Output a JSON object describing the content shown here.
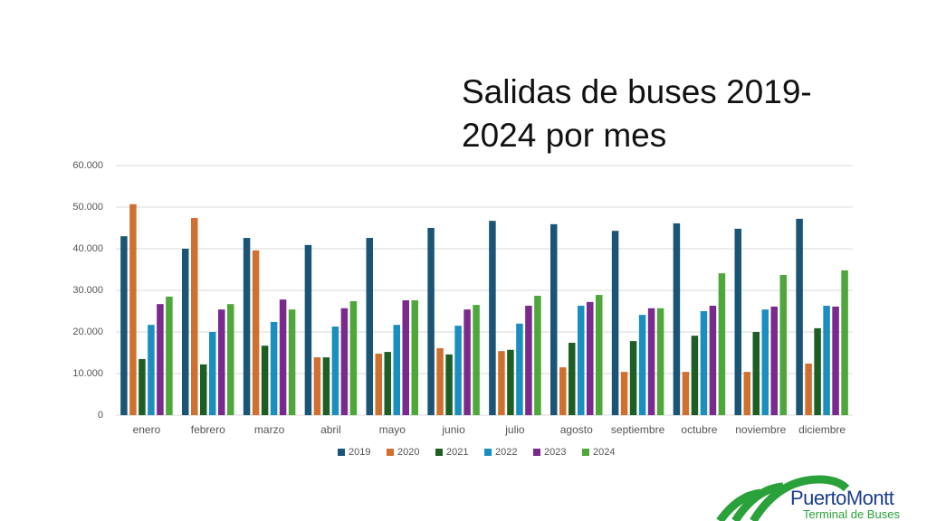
{
  "chart_data": {
    "type": "bar",
    "title": "Salidas de buses 2019-2024 por mes",
    "categories": [
      "enero",
      "febrero",
      "marzo",
      "abril",
      "mayo",
      "junio",
      "julio",
      "agosto",
      "septiembre",
      "octubre",
      "noviembre",
      "diciembre"
    ],
    "series": [
      {
        "name": "2019",
        "color": "#1a5576",
        "values": [
          43000,
          40000,
          42600,
          40900,
          42600,
          45000,
          46700,
          45900,
          44300,
          46100,
          44800,
          47200
        ]
      },
      {
        "name": "2020",
        "color": "#d0702f",
        "values": [
          50700,
          47400,
          39600,
          13900,
          14800,
          16100,
          15400,
          11500,
          10400,
          10400,
          10400,
          12400
        ]
      },
      {
        "name": "2021",
        "color": "#1e5e25",
        "values": [
          13500,
          12200,
          16700,
          13900,
          15200,
          14600,
          15700,
          17400,
          17800,
          19100,
          20000,
          20900
        ]
      },
      {
        "name": "2022",
        "color": "#1a8fbf",
        "values": [
          21700,
          20000,
          22400,
          21300,
          21700,
          21500,
          22000,
          26300,
          24100,
          25000,
          25400,
          26300
        ]
      },
      {
        "name": "2023",
        "color": "#7a2a8c",
        "values": [
          26700,
          25400,
          27800,
          25700,
          27600,
          25400,
          26300,
          27200,
          25700,
          26300,
          26100,
          26100
        ]
      },
      {
        "name": "2024",
        "color": "#4ea73a",
        "values": [
          28500,
          26700,
          25400,
          27400,
          27600,
          26500,
          28700,
          28900,
          25700,
          34100,
          33700,
          34800
        ]
      }
    ],
    "ylim": [
      0,
      60000
    ],
    "yticks": [
      0,
      {
        "value": 10000,
        "label": "10.000"
      },
      {
        "value": 20000,
        "label": "20.000"
      },
      {
        "value": 30000,
        "label": "30.000"
      },
      {
        "value": 40000,
        "label": "40.000"
      },
      {
        "value": 50000,
        "label": "50.000"
      },
      {
        "value": 60000,
        "label": "60.000"
      }
    ],
    "grid": true,
    "legend": "bottom"
  },
  "logo": {
    "name": "PuertoMontt",
    "subtitle": "Terminal de Buses"
  }
}
